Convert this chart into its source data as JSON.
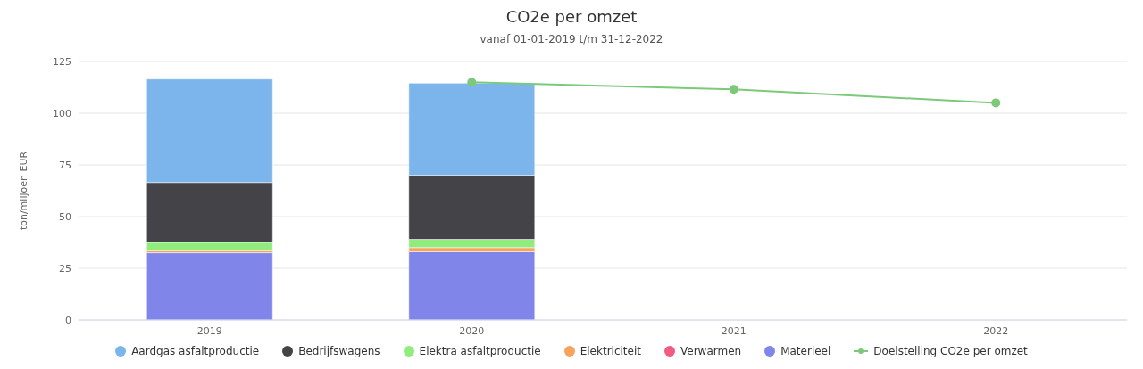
{
  "chart_data": {
    "type": "bar",
    "title": "CO2e per omzet",
    "subtitle": "vanaf 01-01-2019 t/m 31-12-2022",
    "ylabel": "ton/miljoen EUR",
    "categories": [
      "2019",
      "2020",
      "2021",
      "2022"
    ],
    "stacked": true,
    "ylim": [
      0,
      125
    ],
    "yticks": [
      0,
      25,
      50,
      75,
      100,
      125
    ],
    "grid": "y",
    "legend": "bottom",
    "series": [
      {
        "name": "Materieel",
        "color": "#8085e9",
        "values": [
          32.5,
          33,
          null,
          null
        ]
      },
      {
        "name": "Verwarmen",
        "color": "#f15c80",
        "values": [
          0,
          0,
          null,
          null
        ]
      },
      {
        "name": "Elektriciteit",
        "color": "#f7a35c",
        "values": [
          1,
          2,
          null,
          null
        ]
      },
      {
        "name": "Elektra asfaltproductie",
        "color": "#90ed7d",
        "values": [
          4,
          4,
          null,
          null
        ]
      },
      {
        "name": "Bedrijfswagens",
        "color": "#434348",
        "values": [
          29,
          31,
          null,
          null
        ]
      },
      {
        "name": "Aardgas asfaltproductie",
        "color": "#7cb5ec",
        "values": [
          50,
          44.5,
          null,
          null
        ]
      },
      {
        "name": "Doelstelling CO2e per omzet",
        "type": "line",
        "color": "#7cc97a",
        "marker": "circle",
        "values": [
          null,
          115,
          111.5,
          105
        ]
      }
    ]
  }
}
